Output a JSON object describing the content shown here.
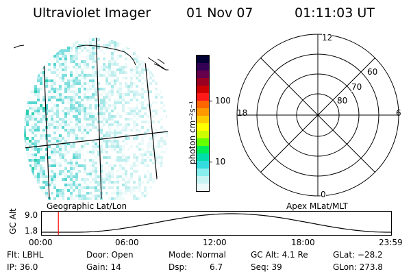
{
  "header": {
    "instrument": "Ultraviolet Imager",
    "date": "01 Nov 07",
    "time": "01:11:03 UT"
  },
  "colorbar": {
    "label": "photon cm⁻²s⁻¹",
    "ticks": [
      "100",
      "10"
    ],
    "colors": [
      "#000033",
      "#330055",
      "#66004d",
      "#990022",
      "#cc0000",
      "#ff1a1a",
      "#ff6600",
      "#ff9900",
      "#ffcc00",
      "#ffff00",
      "#ccff00",
      "#66ff00",
      "#00ee55",
      "#00ddaa",
      "#33dddd",
      "#88eeee",
      "#c8f4f4",
      "#eefafa"
    ]
  },
  "polar_plot": {
    "mlt_labels": {
      "top": "12",
      "left": "18",
      "right": "6",
      "bottom": "0"
    },
    "lat_labels": [
      "60",
      "70",
      "80"
    ]
  },
  "projection_labels": {
    "left": "Geographic Lat/Lon",
    "right": "Apex MLat/MLT"
  },
  "alt_plot": {
    "ylabel": "GC Alt",
    "ytick_top": "9.0",
    "ytick_bottom": "1.8",
    "xticks": [
      "00:00",
      "06:00",
      "12:00",
      "18:00",
      "23:59"
    ],
    "current_time_marker_hours": 1.18,
    "marker_color": "#ff0000"
  },
  "info": {
    "flt": "Flt: LBHL",
    "ip": "IP: 36.0",
    "door": "Door: Open",
    "gain": "Gain: 14",
    "mode": "Mode: Normal",
    "dsp_label": "Dsp:",
    "dsp_value": "6.7",
    "gc_alt": "GC Alt: 4.1 Re",
    "seq": "Seq: 39",
    "glat": "GLat: −28.2",
    "glon": "GLon: 273.8"
  }
}
